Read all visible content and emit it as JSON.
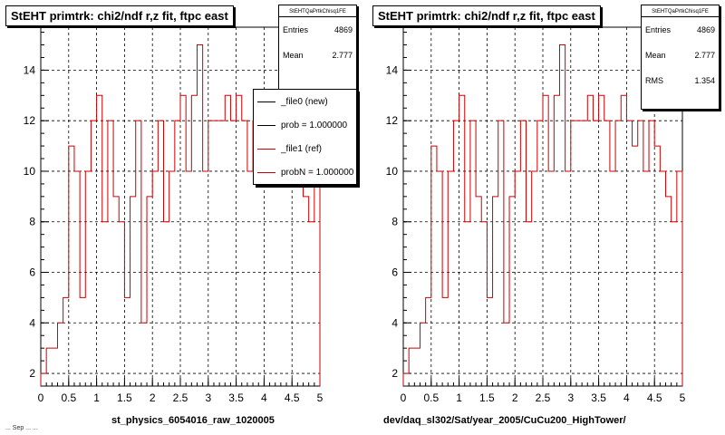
{
  "footer_text": "... Sep ... ...",
  "panels": [
    {
      "title": "StEHT primtrk: chi2/ndf r,z fit, ftpc east",
      "stats": {
        "name": "StEHTQaPrtkChisq1FE",
        "rows": [
          {
            "label": "Entries",
            "value": "4869"
          },
          {
            "label": "Mean",
            "value": "2.777"
          }
        ]
      },
      "xlabel": "st_physics_6054016_raw_1020005",
      "legend": [
        {
          "label": "_file0 (new)",
          "color": "#000000"
        },
        {
          "label": "prob = 1.000000",
          "color": "#000000"
        },
        {
          "label": "_file1 (ref)",
          "color": "#cc0000"
        },
        {
          "label": "probN = 1.000000",
          "color": "#cc0000"
        }
      ]
    },
    {
      "title": "StEHT primtrk: chi2/ndf r,z fit, ftpc east",
      "stats": {
        "name": "StEHTQaPrtkChisq1FE",
        "rows": [
          {
            "label": "Entries",
            "value": "4869"
          },
          {
            "label": "Mean",
            "value": "2.777"
          },
          {
            "label": "RMS",
            "value": "1.354"
          }
        ]
      },
      "xlabel": "dev/daq_sl302/Sat/year_2005/CuCu200_HighTower/"
    }
  ],
  "chart_data": [
    {
      "type": "line",
      "title": "StEHT primtrk: chi2/ndf r,z fit, ftpc east",
      "xlabel": "st_physics_6054016_raw_1020005",
      "xlim": [
        0,
        5
      ],
      "ylim": [
        1.5,
        15.7
      ],
      "xticks": [
        "0",
        "0.5",
        "1",
        "1.5",
        "2",
        "2.5",
        "3",
        "3.5",
        "4",
        "4.5",
        "5"
      ],
      "yticks": [
        "2",
        "4",
        "6",
        "8",
        "10",
        "12",
        "14"
      ],
      "grid": true,
      "legend_position": "top-right",
      "bin_width": 0.1,
      "series": [
        {
          "name": "_file1 (ref)",
          "color": "#cc0000",
          "values": [
            2,
            3,
            3,
            4,
            5,
            11,
            10,
            5,
            10,
            12,
            13,
            8,
            12,
            9,
            8,
            5,
            9,
            12,
            4,
            9,
            10,
            12,
            8,
            10,
            12,
            13,
            10,
            13,
            15,
            10,
            12,
            12,
            12,
            13,
            12,
            13,
            12,
            10,
            12,
            13,
            12,
            11,
            12,
            10,
            12,
            11,
            10,
            9,
            8,
            10
          ]
        }
      ]
    },
    {
      "type": "line",
      "title": "StEHT primtrk: chi2/ndf r,z fit, ftpc east",
      "xlabel": "dev/daq_sl302/Sat/year_2005/CuCu200_HighTower/",
      "xlim": [
        0,
        5
      ],
      "ylim": [
        1.5,
        15.7
      ],
      "xticks": [
        "0",
        "0.5",
        "1",
        "1.5",
        "2",
        "2.5",
        "3",
        "3.5",
        "4",
        "4.5",
        "5"
      ],
      "yticks": [
        "2",
        "4",
        "6",
        "8",
        "10",
        "12",
        "14"
      ],
      "grid": true,
      "bin_width": 0.1,
      "series": [
        {
          "name": "",
          "color": "#cc0000",
          "values": [
            2,
            3,
            3,
            4,
            5,
            11,
            10,
            5,
            10,
            12,
            13,
            8,
            12,
            9,
            8,
            5,
            9,
            12,
            4,
            9,
            10,
            12,
            8,
            10,
            12,
            13,
            10,
            13,
            15,
            10,
            12,
            12,
            12,
            13,
            12,
            13,
            12,
            10,
            12,
            13,
            12,
            11,
            12,
            10,
            12,
            11,
            10,
            9,
            8,
            10
          ]
        }
      ]
    }
  ]
}
